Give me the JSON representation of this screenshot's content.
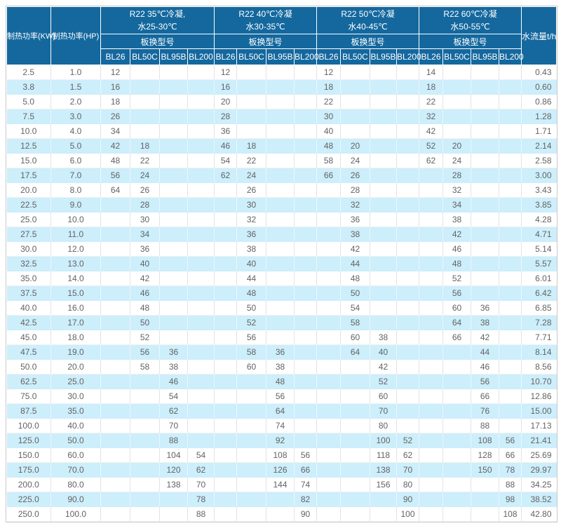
{
  "table": {
    "power_kw_header": "制热功率(KW)",
    "power_hp_header": "制热功率(HP)",
    "flow_header": "水流量t/h",
    "groups": [
      {
        "title_line1": "R22 35℃冷凝,",
        "title_line2": "水25-30℃",
        "models_label": "板换型号",
        "models": [
          "BL26",
          "BL50C",
          "BL95B",
          "BL200"
        ]
      },
      {
        "title_line1": "R22 40℃冷凝",
        "title_line2": "水30-35℃",
        "models_label": "板换型号",
        "models": [
          "BL26",
          "BL50C",
          "BL95B",
          "BL200"
        ]
      },
      {
        "title_line1": "R22 50℃冷凝",
        "title_line2": "水40-45℃",
        "models_label": "板换型号",
        "models": [
          "BL26",
          "BL50C",
          "BL95B",
          "BL200"
        ]
      },
      {
        "title_line1": "R22 60℃冷凝",
        "title_line2": "水50-55℃",
        "models_label": "板换型号",
        "models": [
          "BL26",
          "BL50C",
          "BL95B",
          "BL200"
        ]
      }
    ],
    "rows": [
      {
        "kw": "2.5",
        "hp": "1.0",
        "cells": [
          "12",
          "",
          "",
          "",
          "12",
          "",
          "",
          "",
          "12",
          "",
          "",
          "",
          "14",
          "",
          "",
          ""
        ],
        "flow": "0.43"
      },
      {
        "kw": "3.8",
        "hp": "1.5",
        "cells": [
          "16",
          "",
          "",
          "",
          "16",
          "",
          "",
          "",
          "18",
          "",
          "",
          "",
          "18",
          "",
          "",
          ""
        ],
        "flow": "0.60"
      },
      {
        "kw": "5.0",
        "hp": "2.0",
        "cells": [
          "18",
          "",
          "",
          "",
          "20",
          "",
          "",
          "",
          "22",
          "",
          "",
          "",
          "22",
          "",
          "",
          ""
        ],
        "flow": "0.86"
      },
      {
        "kw": "7.5",
        "hp": "3.0",
        "cells": [
          "26",
          "",
          "",
          "",
          "28",
          "",
          "",
          "",
          "30",
          "",
          "",
          "",
          "32",
          "",
          "",
          ""
        ],
        "flow": "1.28"
      },
      {
        "kw": "10.0",
        "hp": "4.0",
        "cells": [
          "34",
          "",
          "",
          "",
          "36",
          "",
          "",
          "",
          "40",
          "",
          "",
          "",
          "42",
          "",
          "",
          ""
        ],
        "flow": "1.71"
      },
      {
        "kw": "12.5",
        "hp": "5.0",
        "cells": [
          "42",
          "18",
          "",
          "",
          "46",
          "18",
          "",
          "",
          "48",
          "20",
          "",
          "",
          "52",
          "20",
          "",
          ""
        ],
        "flow": "2.14"
      },
      {
        "kw": "15.0",
        "hp": "6.0",
        "cells": [
          "48",
          "22",
          "",
          "",
          "54",
          "22",
          "",
          "",
          "58",
          "24",
          "",
          "",
          "62",
          "24",
          "",
          ""
        ],
        "flow": "2.58"
      },
      {
        "kw": "17.5",
        "hp": "7.0",
        "cells": [
          "56",
          "24",
          "",
          "",
          "62",
          "24",
          "",
          "",
          "66",
          "26",
          "",
          "",
          "",
          "28",
          "",
          ""
        ],
        "flow": "3.00"
      },
      {
        "kw": "20.0",
        "hp": "8.0",
        "cells": [
          "64",
          "26",
          "",
          "",
          "",
          "26",
          "",
          "",
          "",
          "28",
          "",
          "",
          "",
          "32",
          "",
          ""
        ],
        "flow": "3.43"
      },
      {
        "kw": "22.5",
        "hp": "9.0",
        "cells": [
          "",
          "28",
          "",
          "",
          "",
          "30",
          "",
          "",
          "",
          "32",
          "",
          "",
          "",
          "34",
          "",
          ""
        ],
        "flow": "3.85"
      },
      {
        "kw": "25.0",
        "hp": "10.0",
        "cells": [
          "",
          "30",
          "",
          "",
          "",
          "32",
          "",
          "",
          "",
          "36",
          "",
          "",
          "",
          "38",
          "",
          ""
        ],
        "flow": "4.28"
      },
      {
        "kw": "27.5",
        "hp": "11.0",
        "cells": [
          "",
          "34",
          "",
          "",
          "",
          "36",
          "",
          "",
          "",
          "38",
          "",
          "",
          "",
          "42",
          "",
          ""
        ],
        "flow": "4.71"
      },
      {
        "kw": "30.0",
        "hp": "12.0",
        "cells": [
          "",
          "36",
          "",
          "",
          "",
          "38",
          "",
          "",
          "",
          "42",
          "",
          "",
          "",
          "46",
          "",
          ""
        ],
        "flow": "5.14"
      },
      {
        "kw": "32.5",
        "hp": "13.0",
        "cells": [
          "",
          "40",
          "",
          "",
          "",
          "40",
          "",
          "",
          "",
          "44",
          "",
          "",
          "",
          "48",
          "",
          ""
        ],
        "flow": "5.57"
      },
      {
        "kw": "35.0",
        "hp": "14.0",
        "cells": [
          "",
          "42",
          "",
          "",
          "",
          "44",
          "",
          "",
          "",
          "48",
          "",
          "",
          "",
          "52",
          "",
          ""
        ],
        "flow": "6.01"
      },
      {
        "kw": "37.5",
        "hp": "15.0",
        "cells": [
          "",
          "46",
          "",
          "",
          "",
          "48",
          "",
          "",
          "",
          "50",
          "",
          "",
          "",
          "56",
          "",
          ""
        ],
        "flow": "6.42"
      },
      {
        "kw": "40.0",
        "hp": "16.0",
        "cells": [
          "",
          "48",
          "",
          "",
          "",
          "50",
          "",
          "",
          "",
          "54",
          "",
          "",
          "",
          "60",
          "36",
          ""
        ],
        "flow": "6.85"
      },
      {
        "kw": "42.5",
        "hp": "17.0",
        "cells": [
          "",
          "50",
          "",
          "",
          "",
          "52",
          "",
          "",
          "",
          "58",
          "",
          "",
          "",
          "64",
          "38",
          ""
        ],
        "flow": "7.28"
      },
      {
        "kw": "45.0",
        "hp": "18.0",
        "cells": [
          "",
          "52",
          "",
          "",
          "",
          "56",
          "",
          "",
          "",
          "60",
          "38",
          "",
          "",
          "66",
          "42",
          ""
        ],
        "flow": "7.71"
      },
      {
        "kw": "47.5",
        "hp": "19.0",
        "cells": [
          "",
          "56",
          "36",
          "",
          "",
          "58",
          "36",
          "",
          "",
          "64",
          "40",
          "",
          "",
          "",
          "44",
          ""
        ],
        "flow": "8.14"
      },
      {
        "kw": "50.0",
        "hp": "20.0",
        "cells": [
          "",
          "58",
          "38",
          "",
          "",
          "60",
          "38",
          "",
          "",
          "",
          "42",
          "",
          "",
          "",
          "46",
          ""
        ],
        "flow": "8.56"
      },
      {
        "kw": "62.5",
        "hp": "25.0",
        "cells": [
          "",
          "",
          "46",
          "",
          "",
          "",
          "48",
          "",
          "",
          "",
          "52",
          "",
          "",
          "",
          "56",
          ""
        ],
        "flow": "10.70"
      },
      {
        "kw": "75.0",
        "hp": "30.0",
        "cells": [
          "",
          "",
          "54",
          "",
          "",
          "",
          "56",
          "",
          "",
          "",
          "60",
          "",
          "",
          "",
          "66",
          ""
        ],
        "flow": "12.86"
      },
      {
        "kw": "87.5",
        "hp": "35.0",
        "cells": [
          "",
          "",
          "62",
          "",
          "",
          "",
          "64",
          "",
          "",
          "",
          "70",
          "",
          "",
          "",
          "76",
          ""
        ],
        "flow": "15.00"
      },
      {
        "kw": "100.0",
        "hp": "40.0",
        "cells": [
          "",
          "",
          "70",
          "",
          "",
          "",
          "74",
          "",
          "",
          "",
          "80",
          "",
          "",
          "",
          "88",
          ""
        ],
        "flow": "17.13"
      },
      {
        "kw": "125.0",
        "hp": "50.0",
        "cells": [
          "",
          "",
          "88",
          "",
          "",
          "",
          "92",
          "",
          "",
          "",
          "100",
          "52",
          "",
          "",
          "108",
          "56"
        ],
        "flow": "21.41"
      },
      {
        "kw": "150.0",
        "hp": "60.0",
        "cells": [
          "",
          "",
          "104",
          "54",
          "",
          "",
          "108",
          "56",
          "",
          "",
          "118",
          "62",
          "",
          "",
          "128",
          "66"
        ],
        "flow": "25.69"
      },
      {
        "kw": "175.0",
        "hp": "70.0",
        "cells": [
          "",
          "",
          "120",
          "62",
          "",
          "",
          "126",
          "66",
          "",
          "",
          "138",
          "70",
          "",
          "",
          "150",
          "78"
        ],
        "flow": "29.97"
      },
      {
        "kw": "200.0",
        "hp": "80.0",
        "cells": [
          "",
          "",
          "138",
          "70",
          "",
          "",
          "144",
          "74",
          "",
          "",
          "156",
          "80",
          "",
          "",
          "",
          "88"
        ],
        "flow": "34.25"
      },
      {
        "kw": "225.0",
        "hp": "90.0",
        "cells": [
          "",
          "",
          "",
          "78",
          "",
          "",
          "",
          "82",
          "",
          "",
          "",
          "90",
          "",
          "",
          "",
          "98"
        ],
        "flow": "38.52"
      },
      {
        "kw": "250.0",
        "hp": "100.0",
        "cells": [
          "",
          "",
          "",
          "88",
          "",
          "",
          "",
          "90",
          "",
          "",
          "",
          "100",
          "",
          "",
          "",
          "108"
        ],
        "flow": "42.80"
      }
    ]
  },
  "colors": {
    "header_bg": "#14689e",
    "header_text": "#ffffff",
    "alt_row_bg": "#cdeefb",
    "body_text": "#636363",
    "outer_border": "#c9c9c9"
  }
}
